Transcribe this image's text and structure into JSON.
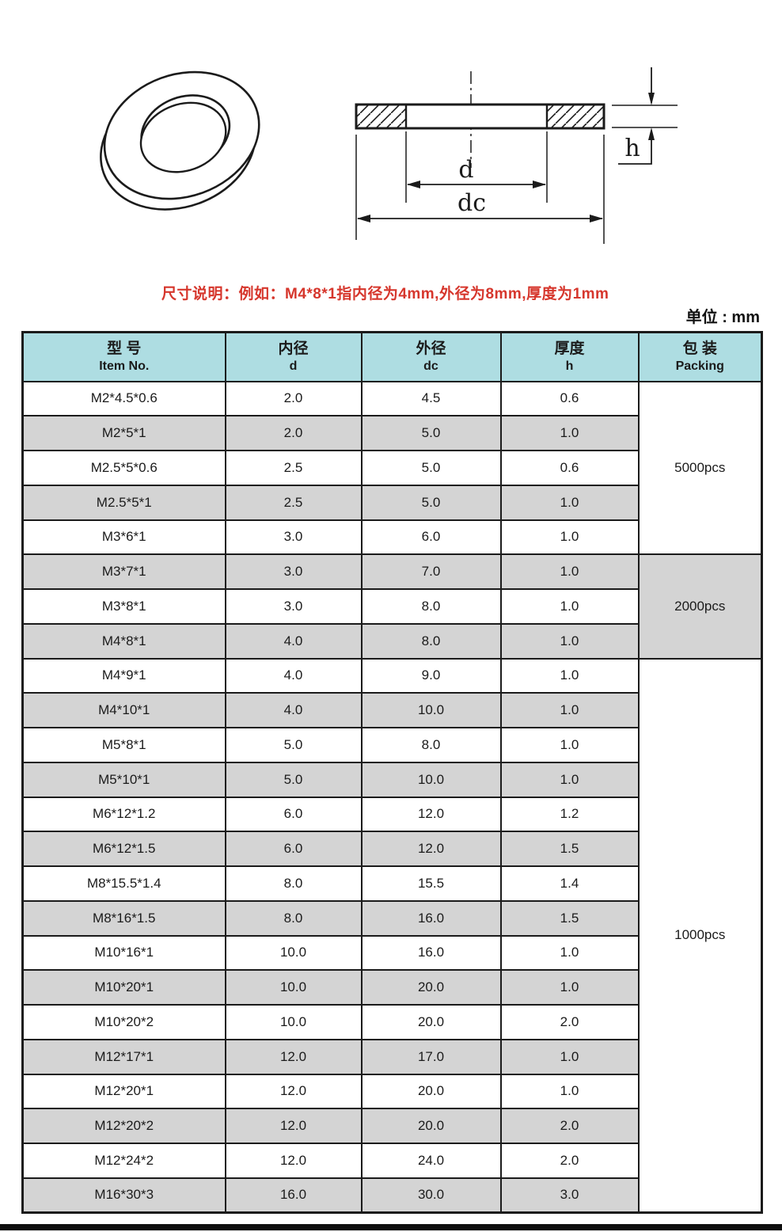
{
  "page": {
    "note": "尺寸说明：例如：M4*8*1指内径为4mm,外径为8mm,厚度为1mm",
    "unit_label": "单位 : mm"
  },
  "drawing": {
    "labels": {
      "inner_diameter": "d",
      "outer_diameter": "dc",
      "thickness": "h"
    }
  },
  "table": {
    "headers": [
      {
        "zh": "型 号",
        "en": "Item No."
      },
      {
        "zh": "内径",
        "en": "d"
      },
      {
        "zh": "外径",
        "en": "dc"
      },
      {
        "zh": "厚度",
        "en": "h"
      },
      {
        "zh": "包 装",
        "en": "Packing"
      }
    ],
    "rows": [
      {
        "item": "M2*4.5*0.6",
        "d": "2.0",
        "dc": "4.5",
        "h": "0.6"
      },
      {
        "item": "M2*5*1",
        "d": "2.0",
        "dc": "5.0",
        "h": "1.0"
      },
      {
        "item": "M2.5*5*0.6",
        "d": "2.5",
        "dc": "5.0",
        "h": "0.6"
      },
      {
        "item": "M2.5*5*1",
        "d": "2.5",
        "dc": "5.0",
        "h": "1.0"
      },
      {
        "item": "M3*6*1",
        "d": "3.0",
        "dc": "6.0",
        "h": "1.0"
      },
      {
        "item": "M3*7*1",
        "d": "3.0",
        "dc": "7.0",
        "h": "1.0"
      },
      {
        "item": "M3*8*1",
        "d": "3.0",
        "dc": "8.0",
        "h": "1.0"
      },
      {
        "item": "M4*8*1",
        "d": "4.0",
        "dc": "8.0",
        "h": "1.0"
      },
      {
        "item": "M4*9*1",
        "d": "4.0",
        "dc": "9.0",
        "h": "1.0"
      },
      {
        "item": "M4*10*1",
        "d": "4.0",
        "dc": "10.0",
        "h": "1.0"
      },
      {
        "item": "M5*8*1",
        "d": "5.0",
        "dc": "8.0",
        "h": "1.0"
      },
      {
        "item": "M5*10*1",
        "d": "5.0",
        "dc": "10.0",
        "h": "1.0"
      },
      {
        "item": "M6*12*1.2",
        "d": "6.0",
        "dc": "12.0",
        "h": "1.2"
      },
      {
        "item": "M6*12*1.5",
        "d": "6.0",
        "dc": "12.0",
        "h": "1.5"
      },
      {
        "item": "M8*15.5*1.4",
        "d": "8.0",
        "dc": "15.5",
        "h": "1.4"
      },
      {
        "item": "M8*16*1.5",
        "d": "8.0",
        "dc": "16.0",
        "h": "1.5"
      },
      {
        "item": "M10*16*1",
        "d": "10.0",
        "dc": "16.0",
        "h": "1.0"
      },
      {
        "item": "M10*20*1",
        "d": "10.0",
        "dc": "20.0",
        "h": "1.0"
      },
      {
        "item": "M10*20*2",
        "d": "10.0",
        "dc": "20.0",
        "h": "2.0"
      },
      {
        "item": "M12*17*1",
        "d": "12.0",
        "dc": "17.0",
        "h": "1.0"
      },
      {
        "item": "M12*20*1",
        "d": "12.0",
        "dc": "20.0",
        "h": "1.0"
      },
      {
        "item": "M12*20*2",
        "d": "12.0",
        "dc": "20.0",
        "h": "2.0"
      },
      {
        "item": "M12*24*2",
        "d": "12.0",
        "dc": "24.0",
        "h": "2.0"
      },
      {
        "item": "M16*30*3",
        "d": "16.0",
        "dc": "30.0",
        "h": "3.0"
      }
    ],
    "packing_groups": [
      {
        "label": "5000pcs",
        "start": 0,
        "span": 5,
        "shade": "white"
      },
      {
        "label": "2000pcs",
        "start": 5,
        "span": 3,
        "shade": "gray"
      },
      {
        "label": "1000pcs",
        "start": 8,
        "span": 16,
        "shade": "white"
      }
    ]
  },
  "colors": {
    "header_bg": "#aedde2",
    "row_gray": "#d4d4d4",
    "note_red": "#d6362c",
    "border": "#1b1b1b"
  }
}
